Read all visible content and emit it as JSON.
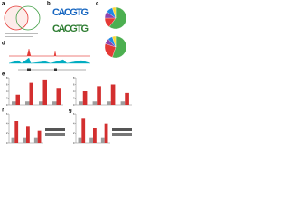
{
  "panel_labels": [
    "a",
    "b",
    "c",
    "d",
    "e",
    "f",
    "g"
  ],
  "motifs": [
    "CACGTG",
    "CACGTG"
  ],
  "chart_data": [
    {
      "type": "pie",
      "values": [
        60,
        15,
        10,
        10,
        5
      ],
      "colors": [
        "#4caf50",
        "#e53935",
        "#8e44ad",
        "#1e88e5",
        "#fdd835"
      ]
    },
    {
      "type": "pie",
      "values": [
        55,
        25,
        8,
        7,
        5
      ],
      "colors": [
        "#4caf50",
        "#e53935",
        "#8e44ad",
        "#1e88e5",
        "#fdd835"
      ]
    },
    {
      "type": "bar",
      "categories": [
        null,
        null,
        null,
        null
      ],
      "ylim": [
        0,
        8
      ],
      "yticks": [
        0,
        2,
        4,
        6,
        8
      ],
      "series": [
        {
          "color": "#9e9e9e",
          "values": [
            1,
            1,
            1,
            1
          ]
        },
        {
          "color": "#d32f2f",
          "values": [
            3,
            6.5,
            7.5,
            5
          ]
        }
      ]
    },
    {
      "type": "bar",
      "categories": [
        null,
        null,
        null,
        null
      ],
      "ylim": [
        0,
        8
      ],
      "yticks": [
        0,
        2,
        4,
        6,
        8
      ],
      "series": [
        {
          "color": "#9e9e9e",
          "values": [
            1,
            1,
            1,
            1
          ]
        },
        {
          "color": "#d32f2f",
          "values": [
            4,
            5.5,
            6,
            3.5
          ]
        }
      ]
    },
    {
      "type": "bar",
      "categories": [
        null,
        null,
        null
      ],
      "ylim": [
        0,
        6
      ],
      "yticks": [
        0,
        2,
        4,
        6
      ],
      "series": [
        {
          "color": "#9e9e9e",
          "values": [
            1,
            1,
            1
          ]
        },
        {
          "color": "#d32f2f",
          "values": [
            4.5,
            3.5,
            2.5
          ]
        }
      ]
    },
    {
      "type": "bar",
      "categories": [
        null,
        null,
        null
      ],
      "ylim": [
        0,
        6
      ],
      "yticks": [
        0,
        2,
        4,
        6
      ],
      "series": [
        {
          "color": "#9e9e9e",
          "values": [
            1,
            1,
            1
          ]
        },
        {
          "color": "#d32f2f",
          "values": [
            5,
            3,
            4
          ]
        }
      ]
    }
  ]
}
